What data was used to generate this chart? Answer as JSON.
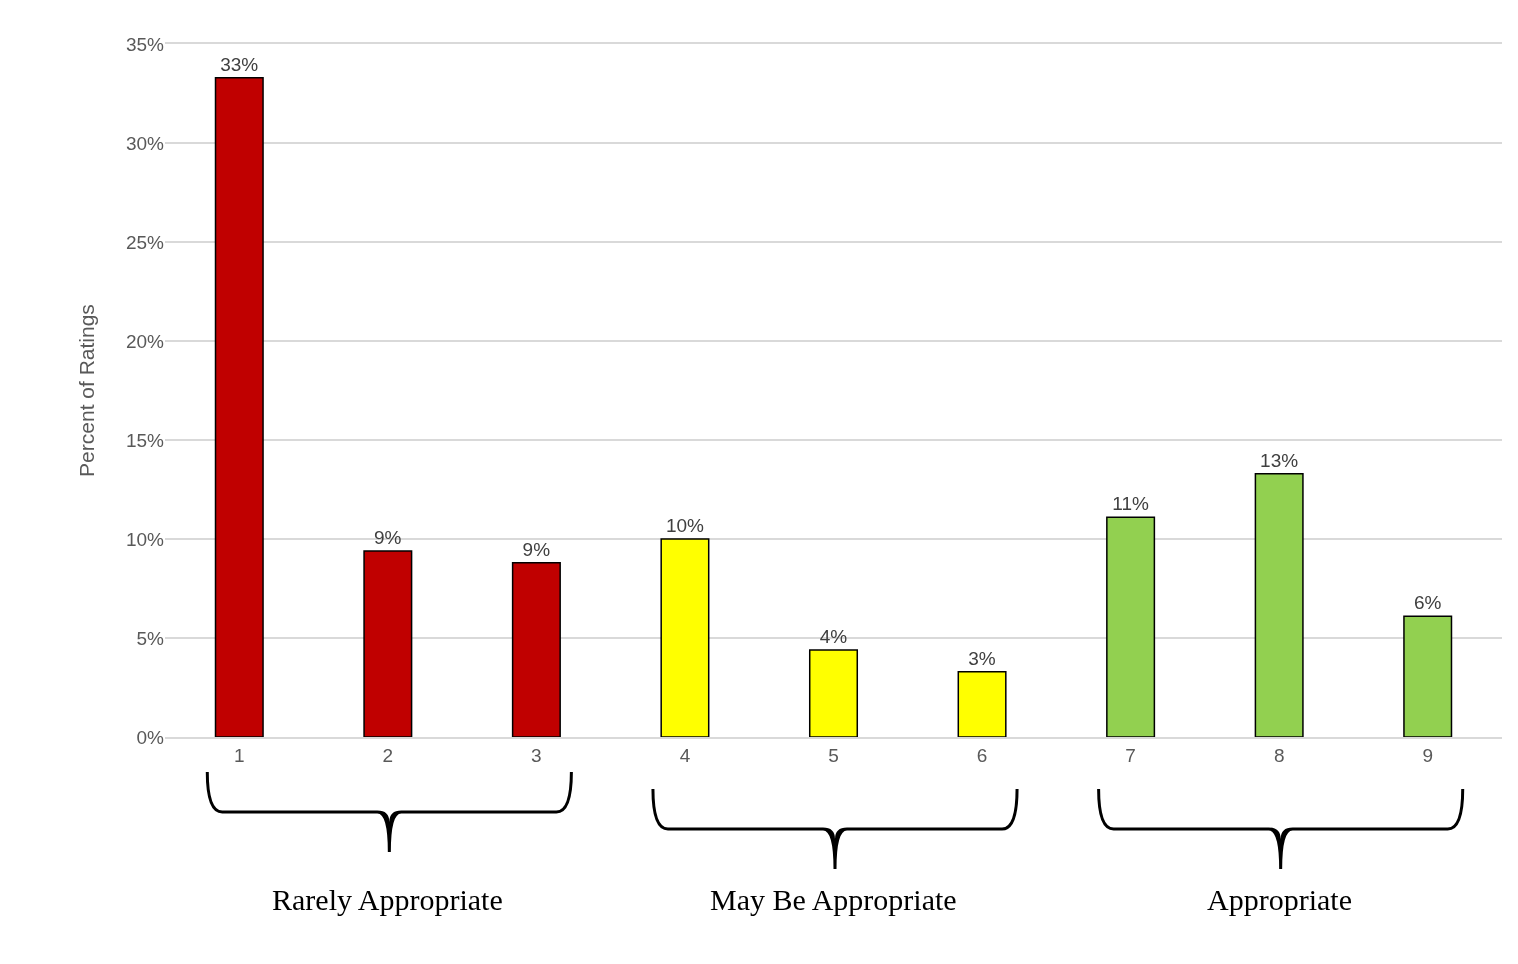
{
  "chart_data": {
    "type": "bar",
    "ylabel": "Percent of Ratings",
    "categories": [
      "1",
      "2",
      "3",
      "4",
      "5",
      "6",
      "7",
      "8",
      "9"
    ],
    "values": [
      33.3,
      9.4,
      8.8,
      10.0,
      4.4,
      3.3,
      11.1,
      13.3,
      6.1
    ],
    "value_labels": [
      "33%",
      "9%",
      "9%",
      "10%",
      "4%",
      "3%",
      "11%",
      "13%",
      "6%"
    ],
    "colors": [
      "#c00000",
      "#c00000",
      "#c00000",
      "#ffff00",
      "#ffff00",
      "#ffff00",
      "#92d050",
      "#92d050",
      "#92d050"
    ],
    "ylim": [
      0,
      35
    ],
    "yticks": [
      {
        "value": 0,
        "label": "0%"
      },
      {
        "value": 5,
        "label": "5%"
      },
      {
        "value": 10,
        "label": "10%"
      },
      {
        "value": 15,
        "label": "15%"
      },
      {
        "value": 20,
        "label": "20%"
      },
      {
        "value": 25,
        "label": "25%"
      },
      {
        "value": 30,
        "label": "30%"
      },
      {
        "value": 35,
        "label": "35%"
      }
    ],
    "grid": "y",
    "annotations": [
      "Rarely Appropriate",
      "May Be Appropriate",
      "Appropriate"
    ]
  }
}
